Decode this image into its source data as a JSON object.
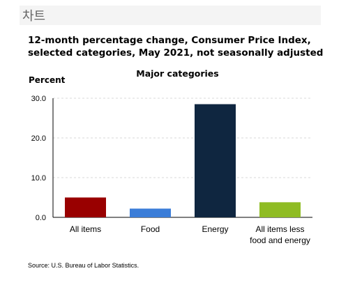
{
  "panel": {
    "title": "차트"
  },
  "chart_data": {
    "type": "bar",
    "title": "12-month percentage change, Consumer Price Index, selected categories, May 2021, not seasonally adjusted",
    "subtitle": "Major categories",
    "ylabel": "Percent",
    "xlabel": "",
    "ylim": [
      0,
      30
    ],
    "yticks": [
      "0.0",
      "10.0",
      "20.0",
      "30.0"
    ],
    "grid": true,
    "categories": [
      "All items",
      "Food",
      "Energy",
      "All items less food and energy"
    ],
    "values": [
      5.0,
      2.2,
      28.5,
      3.8
    ],
    "colors": [
      "#990000",
      "#3b7dd8",
      "#0f2640",
      "#8fbc24"
    ],
    "source": "Source: U.S. Bureau of Labor Statistics."
  }
}
